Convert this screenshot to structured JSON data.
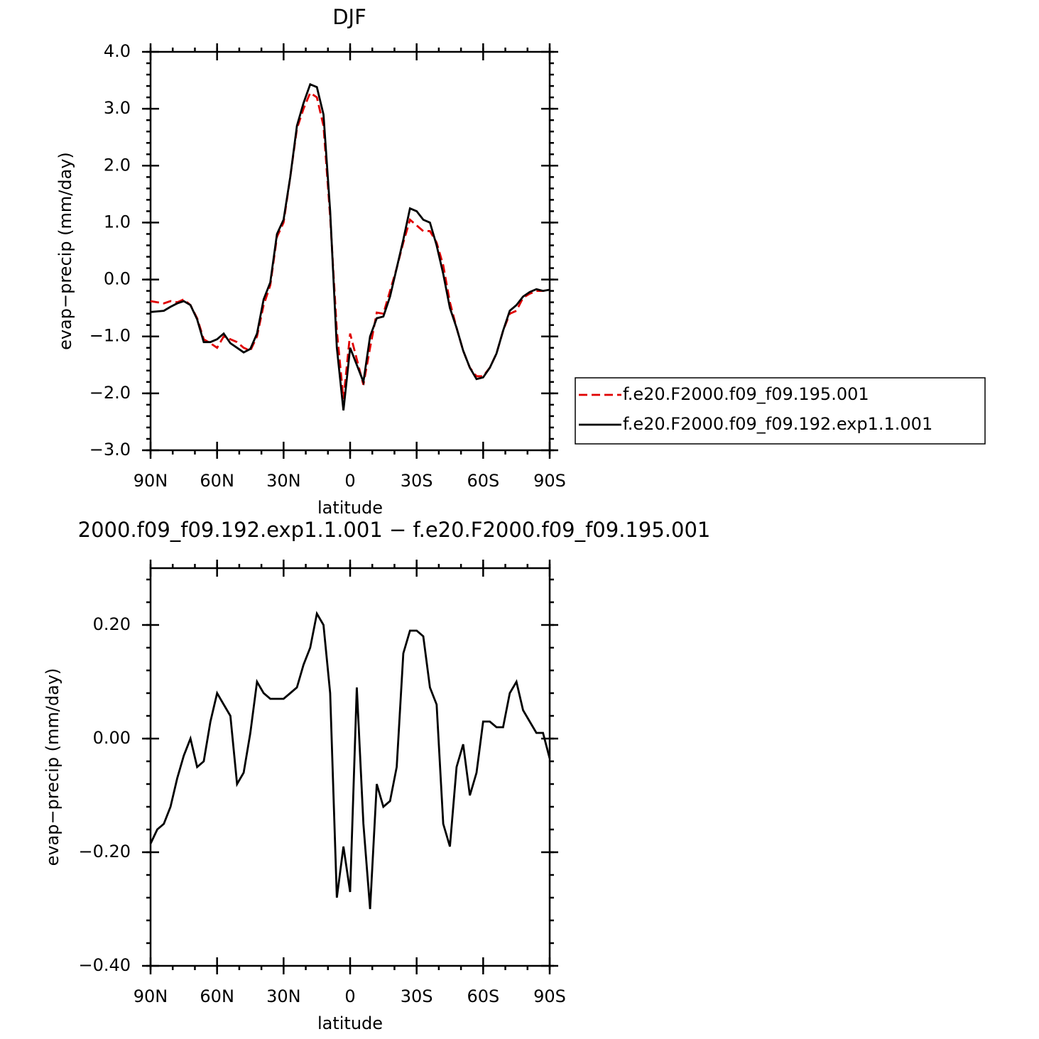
{
  "chart_data": [
    {
      "type": "line",
      "title": "DJF",
      "xlabel": "latitude",
      "ylabel": "evap−precip (mm/day)",
      "x": [
        90,
        87,
        84,
        81,
        78,
        75,
        72,
        69,
        66,
        63,
        60,
        57,
        54,
        51,
        48,
        45,
        42,
        39,
        36,
        33,
        30,
        27,
        24,
        21,
        18,
        15,
        12,
        9,
        6,
        3,
        0,
        -3,
        -6,
        -9,
        -12,
        -15,
        -18,
        -21,
        -24,
        -27,
        -30,
        -33,
        -36,
        -39,
        -42,
        -45,
        -48,
        -51,
        -54,
        -57,
        -60,
        -63,
        -66,
        -69,
        -72,
        -75,
        -78,
        -81,
        -84,
        -87,
        -90
      ],
      "xlim": [
        90,
        -90
      ],
      "xticks": [
        {
          "value": 90,
          "label": "90N"
        },
        {
          "value": 60,
          "label": "60N"
        },
        {
          "value": 30,
          "label": "30N"
        },
        0,
        {
          "value": -30,
          "label": "30S"
        },
        {
          "value": -60,
          "label": "60S"
        },
        {
          "value": -90,
          "label": "90S"
        }
      ],
      "ylim": [
        -3,
        4
      ],
      "yticks": [
        {
          "value": -3,
          "label": "−3.0"
        },
        {
          "value": -2,
          "label": "−2.0"
        },
        {
          "value": -1,
          "label": "−1.0"
        },
        {
          "value": 0,
          "label": "0.0"
        },
        {
          "value": 1,
          "label": "1.0"
        },
        {
          "value": 2,
          "label": "2.0"
        },
        {
          "value": 3,
          "label": "3.0"
        },
        {
          "value": 4,
          "label": "4.0"
        }
      ],
      "legend": "outside-right",
      "series": [
        {
          "name": "f.e20.F2000.f09_f09.195.001",
          "color": "#e00000",
          "dash": true,
          "values": [
            -0.38,
            -0.4,
            -0.42,
            -0.38,
            -0.4,
            -0.35,
            -0.45,
            -0.68,
            -1.05,
            -1.12,
            -1.2,
            -1.0,
            -1.05,
            -1.1,
            -1.2,
            -1.25,
            -1.0,
            -0.45,
            -0.1,
            0.75,
            1.0,
            1.8,
            2.65,
            3.0,
            3.28,
            3.2,
            2.7,
            1.1,
            -0.9,
            -2.1,
            -0.95,
            -1.4,
            -1.85,
            -1.2,
            -0.58,
            -0.6,
            -0.2,
            0.2,
            0.65,
            1.05,
            0.95,
            0.85,
            0.85,
            0.65,
            0.25,
            -0.4,
            -0.85,
            -1.25,
            -1.55,
            -1.7,
            -1.7,
            -1.55,
            -1.3,
            -0.9,
            -0.6,
            -0.55,
            -0.32,
            -0.25,
            -0.2,
            -0.2,
            -0.18
          ]
        },
        {
          "name": "f.e20.F2000.f09_f09.192.exp1.1.001",
          "color": "#000000",
          "dash": false,
          "values": [
            -0.57,
            -0.56,
            -0.55,
            -0.48,
            -0.42,
            -0.38,
            -0.45,
            -0.7,
            -1.1,
            -1.1,
            -1.05,
            -0.95,
            -1.12,
            -1.2,
            -1.28,
            -1.22,
            -0.95,
            -0.35,
            -0.05,
            0.8,
            1.05,
            1.8,
            2.7,
            3.1,
            3.43,
            3.38,
            2.9,
            1.2,
            -1.2,
            -2.3,
            -1.2,
            -1.5,
            -1.8,
            -1.0,
            -0.68,
            -0.65,
            -0.3,
            0.2,
            0.7,
            1.25,
            1.2,
            1.05,
            1.0,
            0.6,
            0.1,
            -0.5,
            -0.85,
            -1.25,
            -1.55,
            -1.75,
            -1.72,
            -1.55,
            -1.3,
            -0.9,
            -0.55,
            -0.45,
            -0.3,
            -0.22,
            -0.17,
            -0.2,
            -0.18
          ]
        }
      ]
    },
    {
      "type": "line",
      "title": "2000.f09_f09.192.exp1.1.001 − f.e20.F2000.f09_f09.195.001",
      "xlabel": "latitude",
      "ylabel": "evap−precip (mm/day)",
      "x": [
        90,
        87,
        84,
        81,
        78,
        75,
        72,
        69,
        66,
        63,
        60,
        57,
        54,
        51,
        48,
        45,
        42,
        39,
        36,
        33,
        30,
        27,
        24,
        21,
        18,
        15,
        12,
        9,
        6,
        3,
        0,
        -3,
        -6,
        -9,
        -12,
        -15,
        -18,
        -21,
        -24,
        -27,
        -30,
        -33,
        -36,
        -39,
        -42,
        -45,
        -48,
        -51,
        -54,
        -57,
        -60,
        -63,
        -66,
        -69,
        -72,
        -75,
        -78,
        -81,
        -84,
        -87,
        -90
      ],
      "xlim": [
        90,
        -90
      ],
      "xticks": [
        {
          "value": 90,
          "label": "90N"
        },
        {
          "value": 60,
          "label": "60N"
        },
        {
          "value": 30,
          "label": "30N"
        },
        0,
        {
          "value": -30,
          "label": "30S"
        },
        {
          "value": -60,
          "label": "60S"
        },
        {
          "value": -90,
          "label": "90S"
        }
      ],
      "ylim": [
        -0.4,
        0.3
      ],
      "yticks": [
        {
          "value": -0.4,
          "label": "−0.40"
        },
        {
          "value": -0.2,
          "label": "−0.20"
        },
        {
          "value": 0,
          "label": "0.00"
        },
        {
          "value": 0.2,
          "label": "0.20"
        }
      ],
      "series": [
        {
          "color": "#000000",
          "values": [
            -0.185,
            -0.16,
            -0.15,
            -0.12,
            -0.07,
            -0.03,
            0.0,
            -0.05,
            -0.04,
            0.03,
            0.08,
            0.06,
            0.04,
            -0.08,
            -0.06,
            0.01,
            0.1,
            0.08,
            0.07,
            0.07,
            0.07,
            0.08,
            0.09,
            0.13,
            0.16,
            0.22,
            0.2,
            0.08,
            -0.28,
            -0.19,
            -0.27,
            0.09,
            -0.15,
            -0.3,
            -0.08,
            -0.12,
            -0.11,
            -0.05,
            0.15,
            0.19,
            0.19,
            0.18,
            0.09,
            0.06,
            -0.15,
            -0.19,
            -0.05,
            -0.01,
            -0.1,
            -0.06,
            0.03,
            0.03,
            0.02,
            0.02,
            0.08,
            0.1,
            0.05,
            0.03,
            0.01,
            0.01,
            -0.035
          ]
        }
      ]
    }
  ]
}
